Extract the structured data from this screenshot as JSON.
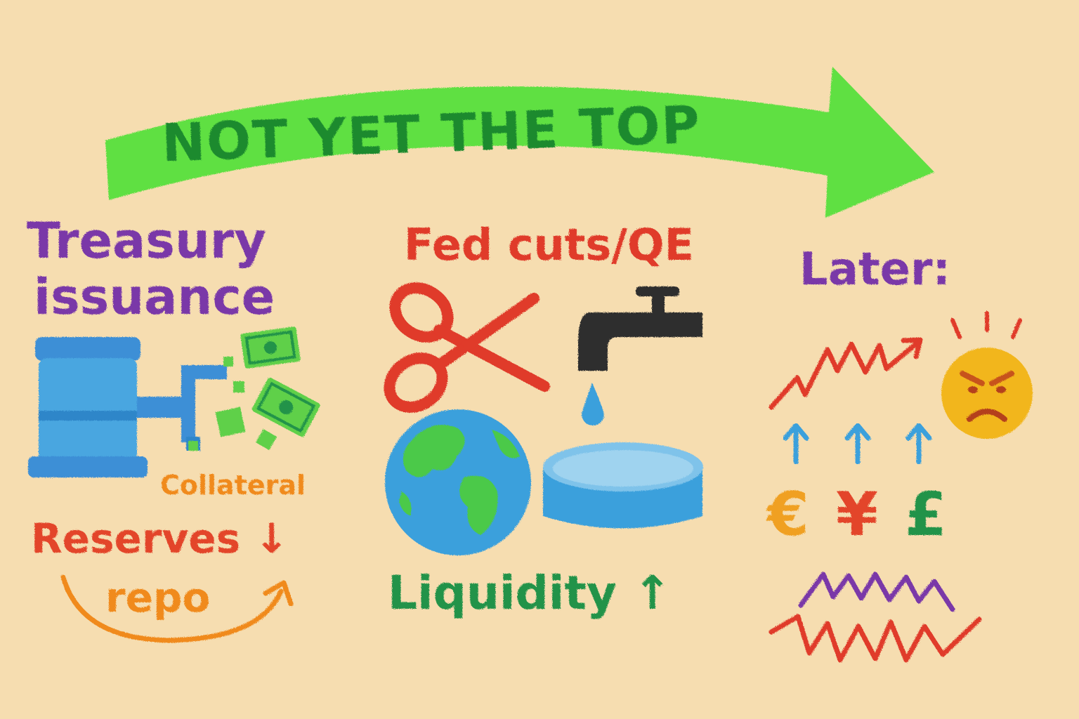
{
  "banner": {
    "title": "NOT YET THE TOP"
  },
  "panels": [
    {
      "id": "treasury",
      "heading_lines": [
        "Treasury",
        "issuance"
      ],
      "labels": {
        "collateral": "Collateral",
        "reserves": "Reserves ↓",
        "repo": "repo"
      },
      "icons": [
        "tank-icon",
        "pipe-icon",
        "cash-icon"
      ]
    },
    {
      "id": "fed",
      "heading": "Fed cuts/QE",
      "labels": {
        "liquidity": "Liquidity ↑"
      },
      "icons": [
        "scissors-icon",
        "faucet-icon",
        "water-drop-icon",
        "globe-icon",
        "pool-icon"
      ]
    },
    {
      "id": "later",
      "heading": "Later:",
      "currencies": [
        "€",
        "¥",
        "£"
      ],
      "icons": [
        "zigzag-up-arrow-icon",
        "angry-face-icon",
        "up-arrow-icon",
        "volatility-line-icon"
      ]
    }
  ],
  "colors": {
    "background": "#f6ddb0",
    "banner_green": "#5fe043",
    "banner_text": "#1f8a2e",
    "purple": "#7a37a8",
    "red": "#e3452b",
    "orange": "#f08a1c",
    "green": "#22934a",
    "blue": "#3aa0dc",
    "divider": "#3a98d4"
  }
}
